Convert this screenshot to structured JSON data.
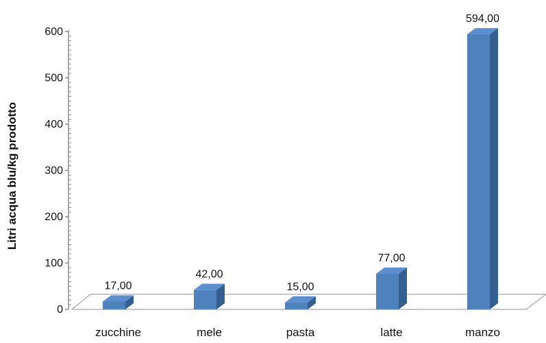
{
  "chart_data": {
    "type": "bar",
    "categories": [
      "zucchine",
      "mele",
      "pasta",
      "latte",
      "manzo"
    ],
    "values": [
      17,
      42,
      15,
      77,
      594
    ],
    "data_labels": [
      "17,00",
      "42,00",
      "15,00",
      "77,00",
      "594,00"
    ],
    "title": "",
    "xlabel": "",
    "ylabel": "Litri acqua blu/kg prodotto",
    "ylim": [
      0,
      600
    ],
    "yticks": [
      0,
      100,
      200,
      300,
      400,
      500,
      600
    ],
    "grid": false,
    "legend": "none",
    "style": "3d-column",
    "colors": {
      "bar_front": "#4F81BD",
      "bar_top": "#5B8FD0",
      "bar_side": "#365F91",
      "floor_stroke": "#A6A6A6",
      "axis_stroke": "#8C8C8C"
    }
  }
}
